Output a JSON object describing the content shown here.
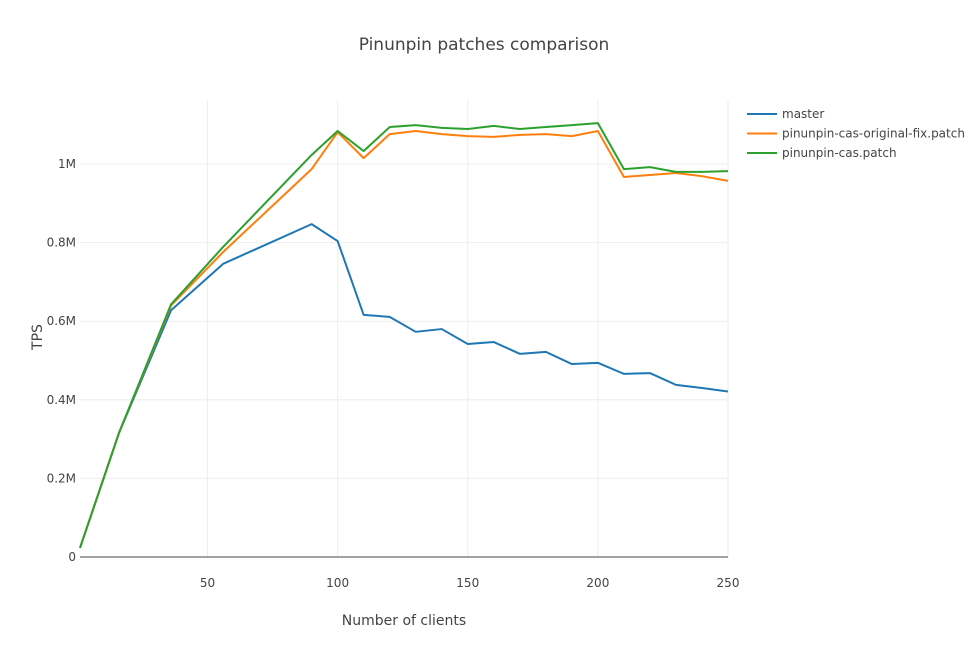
{
  "chart_data": {
    "type": "line",
    "title": "Pinunpin patches comparison",
    "xlabel": "Number of clients",
    "ylabel": "TPS",
    "xlim": [
      1,
      250
    ],
    "ylim": [
      0,
      1160000
    ],
    "x_ticks": [
      50,
      100,
      150,
      200,
      250
    ],
    "x_tick_labels": [
      "50",
      "100",
      "150",
      "200",
      "250"
    ],
    "y_ticks": [
      0,
      200000,
      400000,
      600000,
      800000,
      1000000
    ],
    "y_tick_labels": [
      "0",
      "0.2M",
      "0.4M",
      "0.6M",
      "0.8M",
      "1M"
    ],
    "grid": true,
    "legend_position": "top-right",
    "x": [
      1,
      16,
      36,
      56,
      90,
      100,
      110,
      120,
      130,
      140,
      150,
      160,
      170,
      180,
      190,
      200,
      210,
      220,
      230,
      240,
      250
    ],
    "series": [
      {
        "name": "master",
        "color": "#1f77b4",
        "values": [
          23000,
          316000,
          628000,
          746000,
          847000,
          804000,
          616000,
          611000,
          573000,
          580000,
          542000,
          547000,
          517000,
          522000,
          491000,
          494000,
          466000,
          468000,
          438000,
          430000,
          421000
        ]
      },
      {
        "name": "pinunpin-cas-original-fix.patch",
        "color": "#ff7f0e",
        "values": [
          23000,
          316000,
          640000,
          776000,
          987000,
          1081000,
          1015000,
          1076000,
          1084000,
          1076000,
          1071000,
          1069000,
          1074000,
          1076000,
          1071000,
          1084000,
          967000,
          972000,
          977000,
          969000,
          957000
        ]
      },
      {
        "name": "pinunpin-cas.patch",
        "color": "#2ca02c",
        "values": [
          23000,
          316000,
          643000,
          789000,
          1023000,
          1084000,
          1033000,
          1094000,
          1099000,
          1092000,
          1089000,
          1097000,
          1089000,
          1094000,
          1099000,
          1104000,
          987000,
          992000,
          980000,
          980000,
          982000
        ]
      }
    ]
  }
}
